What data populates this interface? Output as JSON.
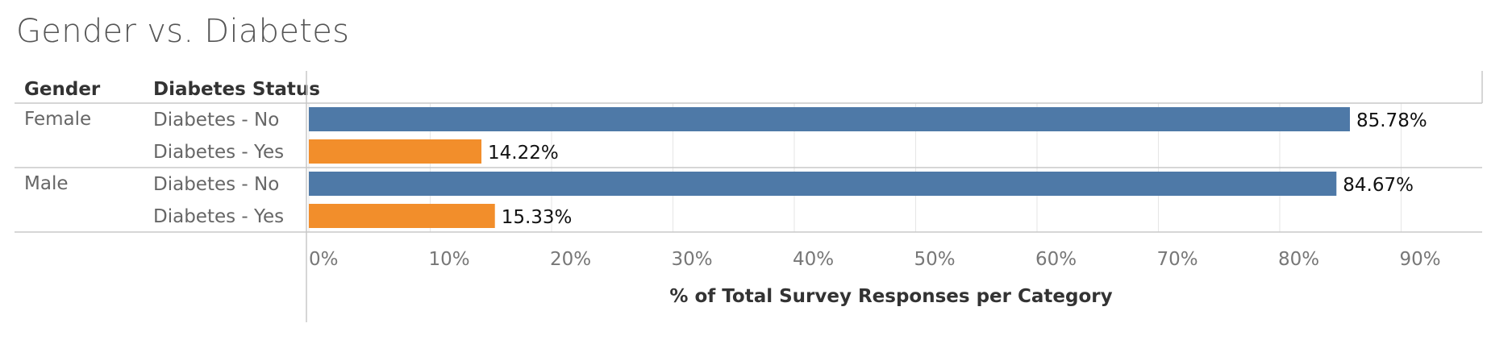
{
  "title": "Gender vs. Diabetes",
  "headers": {
    "gender": "Gender",
    "status": "Diabetes Status"
  },
  "rows": [
    {
      "gender": "Female",
      "status": "Diabetes - No"
    },
    {
      "gender": "",
      "status": "Diabetes - Yes"
    },
    {
      "gender": "Male",
      "status": "Diabetes - No"
    },
    {
      "gender": "",
      "status": "Diabetes - Yes"
    }
  ],
  "colors": {
    "no": "#4e79a7",
    "yes": "#f28e2b",
    "grid": "#e6e6e6",
    "axis": "#c8c8c8"
  },
  "chart_data": {
    "type": "bar",
    "orientation": "horizontal",
    "title": "Gender vs. Diabetes",
    "xlabel": "% of Total Survey Responses per Category",
    "xlim": [
      0,
      95
    ],
    "xticks": [
      0,
      10,
      20,
      30,
      40,
      50,
      60,
      70,
      80,
      90
    ],
    "xtick_labels": [
      "0%",
      "10%",
      "20%",
      "30%",
      "40%",
      "50%",
      "60%",
      "70%",
      "80%",
      "90%"
    ],
    "categories": [
      "Female | Diabetes - No",
      "Female | Diabetes - Yes",
      "Male | Diabetes - No",
      "Male | Diabetes - Yes"
    ],
    "values": [
      85.78,
      14.22,
      84.67,
      15.33
    ],
    "value_labels": [
      "85.78%",
      "14.22%",
      "84.67%",
      "15.33%"
    ],
    "bar_series": [
      "no",
      "yes",
      "no",
      "yes"
    ],
    "grid": true
  }
}
